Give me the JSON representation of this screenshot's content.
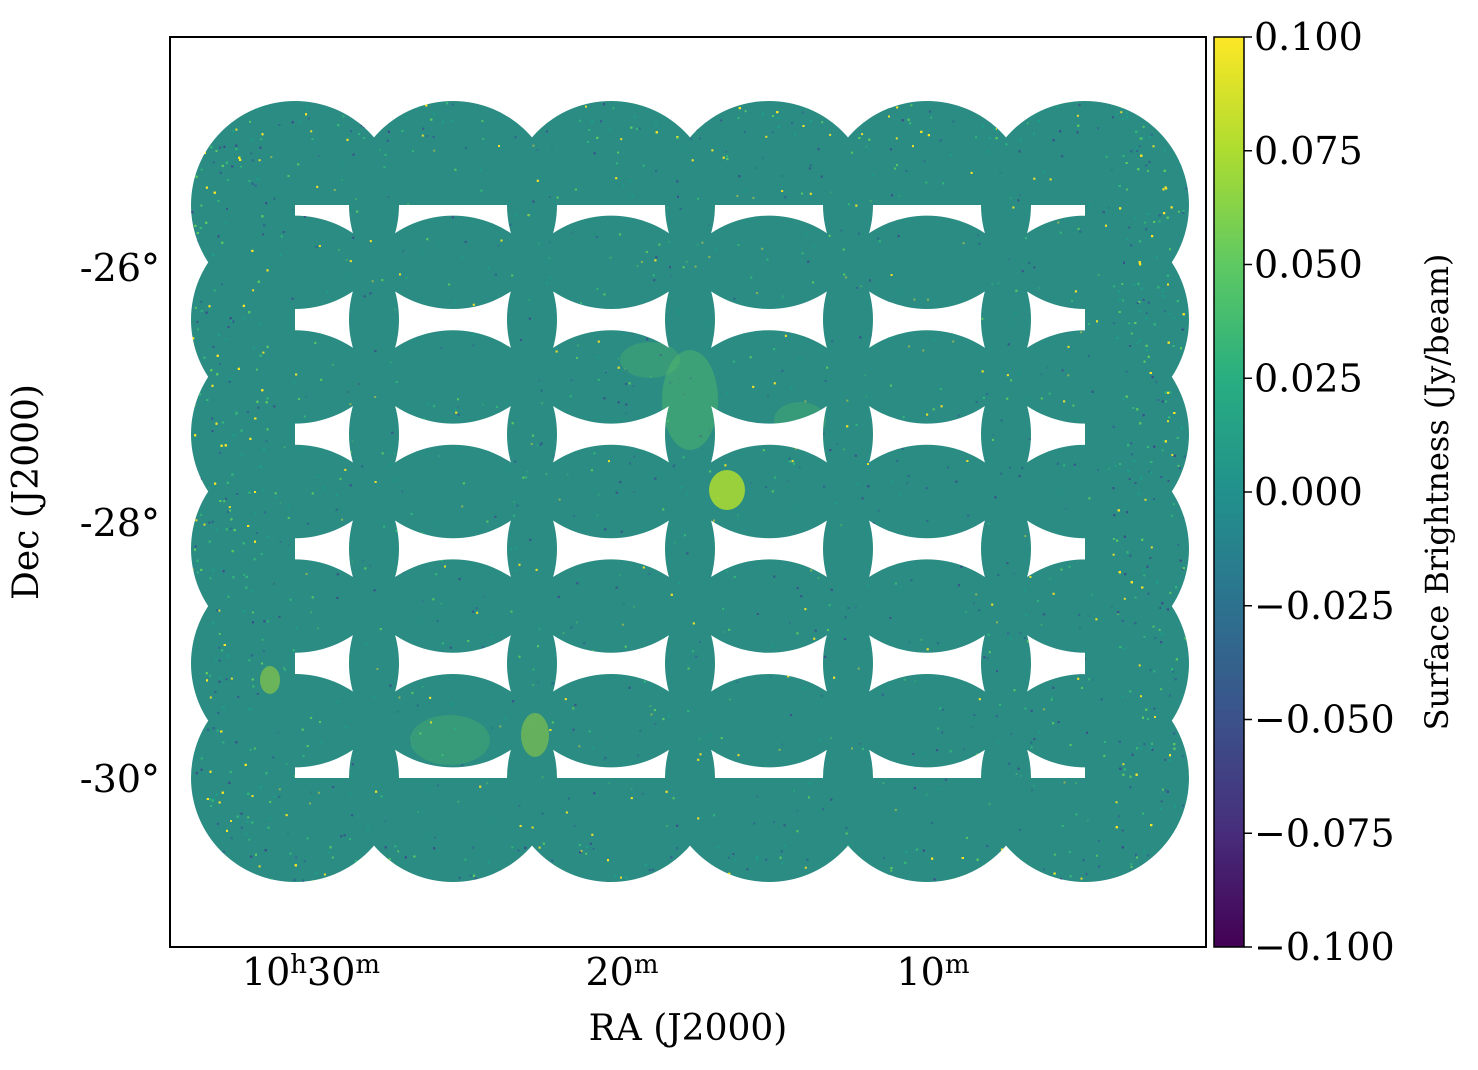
{
  "chart_data": {
    "type": "heatmap",
    "title": "",
    "xlabel": "RA (J2000)",
    "ylabel": "Dec (J2000)",
    "x_ticks": [
      {
        "value": "10h30m",
        "main": "10",
        "sup1": "h",
        "main2": "30",
        "sup2": "m"
      },
      {
        "value": "20m",
        "main": "20",
        "sup1": "m",
        "main2": "",
        "sup2": ""
      },
      {
        "value": "10m",
        "main": "10",
        "sup1": "m",
        "main2": "",
        "sup2": ""
      }
    ],
    "y_ticks": [
      "-26°",
      "-28°",
      "-30°"
    ],
    "colorbar": {
      "label": "Surface Brightness (Jy/beam)",
      "colormap": "viridis",
      "range": [
        -0.1,
        0.1
      ],
      "ticks": [
        "0.100",
        "0.075",
        "0.050",
        "0.025",
        "0.000",
        "−0.025",
        "−0.050",
        "−0.075",
        "−0.100"
      ],
      "colors": [
        "#440154",
        "#472d7b",
        "#3b528b",
        "#2c728e",
        "#21918c",
        "#28ae80",
        "#5ec962",
        "#addc30",
        "#fde725"
      ]
    },
    "map": {
      "description_free": true,
      "mosaic_grid": [
        6,
        6
      ],
      "background_value": 0.0,
      "background_color": "#2a8c82",
      "noise_colors": [
        "#fde725",
        "#31688e",
        "#3b528b",
        "#5ec962",
        "#1f9e89",
        "#35b779"
      ]
    },
    "grid": false
  }
}
